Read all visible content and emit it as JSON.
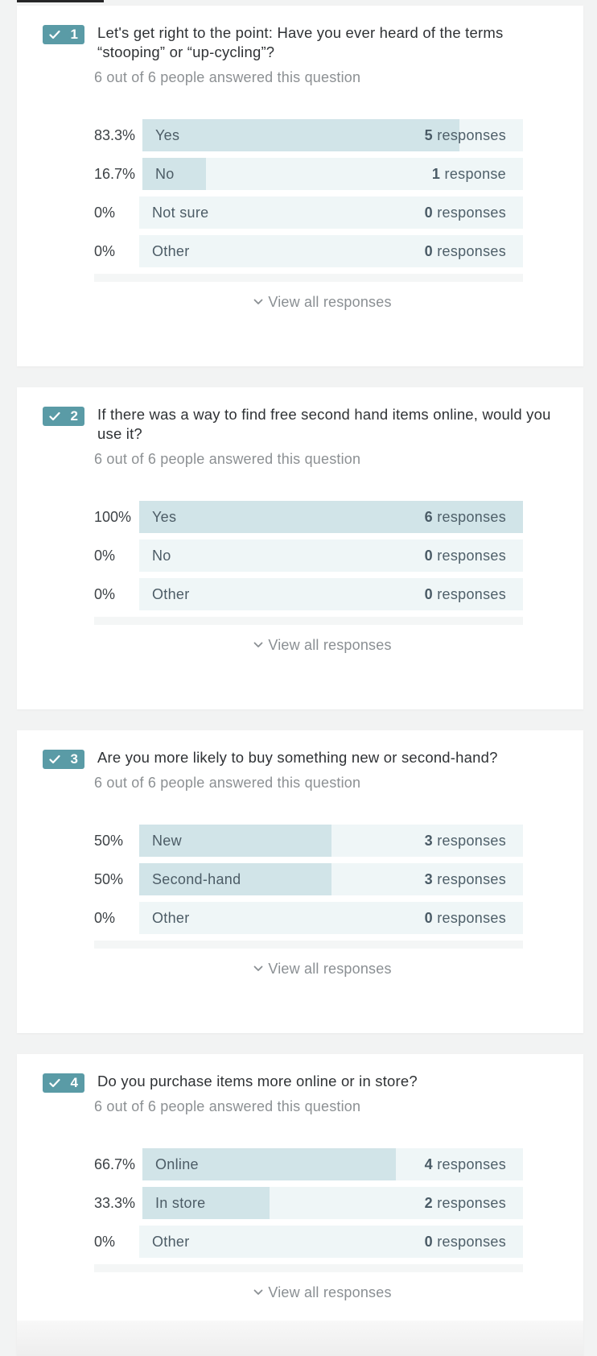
{
  "colors": {
    "background": "#f2f3f3",
    "card": "#ffffff",
    "badge": "#5a9ba6",
    "bar_track": "#eff6f7",
    "bar_fill": "#d1e4e8",
    "muted_text": "#8c9093"
  },
  "questions": [
    {
      "number": "1",
      "title": "Let's get right to the point: Have you ever heard of the terms “stooping” or “up-cycling”?",
      "answered": "6 out of 6 people answered this question",
      "view_all": "View all responses",
      "options": [
        {
          "percent": "83.3%",
          "label": "Yes",
          "count": "5",
          "unit": "responses",
          "fraction": 0.833
        },
        {
          "percent": "16.7%",
          "label": "No",
          "count": "1",
          "unit": "response",
          "fraction": 0.167
        },
        {
          "percent": "0%",
          "label": "Not sure",
          "count": "0",
          "unit": "responses",
          "fraction": 0
        },
        {
          "percent": "0%",
          "label": "Other",
          "count": "0",
          "unit": "responses",
          "fraction": 0
        }
      ]
    },
    {
      "number": "2",
      "title": "If there was a way to find free second hand items online, would you use it?",
      "answered": "6 out of 6 people answered this question",
      "view_all": "View all responses",
      "options": [
        {
          "percent": "100%",
          "label": "Yes",
          "count": "6",
          "unit": "responses",
          "fraction": 1
        },
        {
          "percent": "0%",
          "label": "No",
          "count": "0",
          "unit": "responses",
          "fraction": 0
        },
        {
          "percent": "0%",
          "label": "Other",
          "count": "0",
          "unit": "responses",
          "fraction": 0
        }
      ]
    },
    {
      "number": "3",
      "title": "Are you more likely to buy something new or second-hand?",
      "answered": "6 out of 6 people answered this question",
      "view_all": "View all responses",
      "options": [
        {
          "percent": "50%",
          "label": "New",
          "count": "3",
          "unit": "responses",
          "fraction": 0.5
        },
        {
          "percent": "50%",
          "label": "Second-hand",
          "count": "3",
          "unit": "responses",
          "fraction": 0.5
        },
        {
          "percent": "0%",
          "label": "Other",
          "count": "0",
          "unit": "responses",
          "fraction": 0
        }
      ]
    },
    {
      "number": "4",
      "title": "Do you purchase items more online or in store?",
      "answered": "6 out of 6 people answered this question",
      "view_all": "View all responses",
      "options": [
        {
          "percent": "66.7%",
          "label": "Online",
          "count": "4",
          "unit": "responses",
          "fraction": 0.667
        },
        {
          "percent": "33.3%",
          "label": "In store",
          "count": "2",
          "unit": "responses",
          "fraction": 0.333
        },
        {
          "percent": "0%",
          "label": "Other",
          "count": "0",
          "unit": "responses",
          "fraction": 0
        }
      ]
    }
  ]
}
